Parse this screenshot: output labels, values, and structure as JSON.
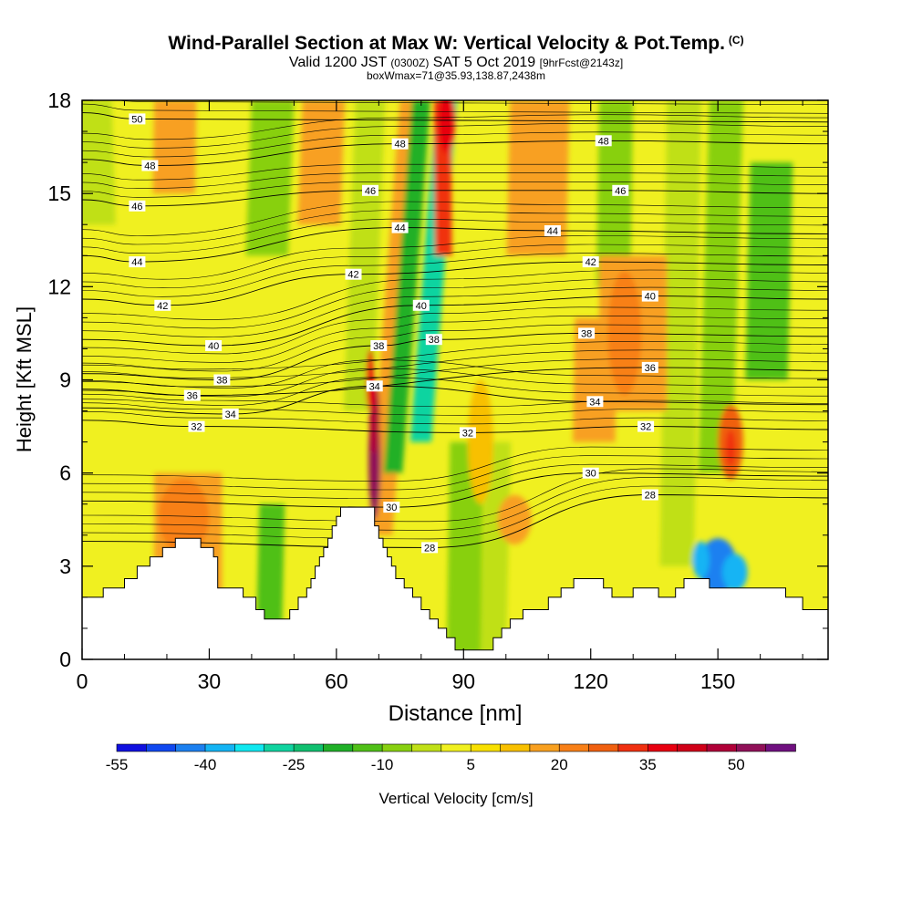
{
  "title": {
    "main": "Wind-Parallel Section at Max W: Vertical Velocity & Pot.Temp.",
    "copyright": "(C)",
    "valid_prefix": "Valid 1200 JST",
    "valid_utc": "(0300Z)",
    "valid_date": "SAT 5 Oct 2019",
    "forecast": "[9hrFcst@2143z]",
    "box_info": "boxWmax=71@35.93,138.87,2438m"
  },
  "chart_data": {
    "type": "heatmap",
    "xlabel": "Distance [nm]",
    "ylabel": "Height [Kft MSL]",
    "xlim": [
      0,
      176
    ],
    "ylim": [
      0,
      18
    ],
    "x_ticks": [
      "0",
      "30",
      "60",
      "90",
      "120",
      "150"
    ],
    "x_tick_values": [
      0,
      30,
      60,
      90,
      120,
      150
    ],
    "y_ticks": [
      "0",
      "3",
      "6",
      "9",
      "12",
      "15",
      "18"
    ],
    "y_tick_values": [
      0,
      3,
      6,
      9,
      12,
      15,
      18
    ],
    "colorbar": {
      "label": "Vertical Velocity [cm/s]",
      "tick_labels": [
        "-55",
        "-40",
        "-25",
        "-10",
        "5",
        "20",
        "35",
        "50"
      ],
      "tick_values": [
        -55,
        -40,
        -25,
        -10,
        5,
        20,
        35,
        50
      ],
      "levels": [
        -55,
        -50,
        -45,
        -40,
        -35,
        -30,
        -25,
        -20,
        -15,
        -10,
        -5,
        0,
        5,
        10,
        15,
        20,
        25,
        30,
        35,
        40,
        45,
        50,
        55,
        60
      ],
      "colors": [
        "#1010e0",
        "#1048f0",
        "#1c80f0",
        "#14b4f4",
        "#10e8f0",
        "#10d4a0",
        "#10c070",
        "#20b028",
        "#50c018",
        "#88d010",
        "#c0e018",
        "#f0f020",
        "#f8e000",
        "#f8c000",
        "#f8a020",
        "#f88018",
        "#f06010",
        "#f03010",
        "#e80010",
        "#d00018",
        "#b00038",
        "#901058",
        "#701080"
      ]
    },
    "terrain_kft": [
      [
        0,
        2.0
      ],
      [
        5,
        2.0
      ],
      [
        5,
        2.3
      ],
      [
        10,
        2.3
      ],
      [
        10,
        2.6
      ],
      [
        13,
        2.6
      ],
      [
        13,
        3.0
      ],
      [
        16,
        3.0
      ],
      [
        16,
        3.3
      ],
      [
        19,
        3.3
      ],
      [
        19,
        3.6
      ],
      [
        22,
        3.6
      ],
      [
        22,
        3.9
      ],
      [
        28,
        3.9
      ],
      [
        28,
        3.6
      ],
      [
        31,
        3.6
      ],
      [
        31,
        3.3
      ],
      [
        32,
        3.3
      ],
      [
        32,
        2.3
      ],
      [
        38,
        2.3
      ],
      [
        38,
        2.0
      ],
      [
        41,
        2.0
      ],
      [
        41,
        1.6
      ],
      [
        43,
        1.6
      ],
      [
        43,
        1.3
      ],
      [
        49,
        1.3
      ],
      [
        49,
        1.6
      ],
      [
        51,
        1.6
      ],
      [
        51,
        2.0
      ],
      [
        53,
        2.0
      ],
      [
        53,
        2.3
      ],
      [
        54,
        2.3
      ],
      [
        54,
        2.6
      ],
      [
        55,
        2.6
      ],
      [
        55,
        3.0
      ],
      [
        56,
        3.0
      ],
      [
        56,
        3.3
      ],
      [
        57,
        3.3
      ],
      [
        57,
        3.6
      ],
      [
        58,
        3.6
      ],
      [
        58,
        3.9
      ],
      [
        59,
        3.9
      ],
      [
        59,
        4.3
      ],
      [
        60,
        4.3
      ],
      [
        60,
        4.6
      ],
      [
        61,
        4.6
      ],
      [
        61,
        4.9
      ],
      [
        69,
        4.9
      ],
      [
        69,
        4.3
      ],
      [
        70,
        4.3
      ],
      [
        70,
        3.9
      ],
      [
        71,
        3.9
      ],
      [
        71,
        3.6
      ],
      [
        72,
        3.6
      ],
      [
        72,
        3.3
      ],
      [
        73,
        3.3
      ],
      [
        73,
        3.0
      ],
      [
        74,
        3.0
      ],
      [
        74,
        2.6
      ],
      [
        76,
        2.6
      ],
      [
        76,
        2.3
      ],
      [
        78,
        2.3
      ],
      [
        78,
        2.0
      ],
      [
        80,
        2.0
      ],
      [
        80,
        1.6
      ],
      [
        82,
        1.6
      ],
      [
        82,
        1.3
      ],
      [
        84,
        1.3
      ],
      [
        84,
        1.0
      ],
      [
        86,
        1.0
      ],
      [
        86,
        0.7
      ],
      [
        88,
        0.7
      ],
      [
        88,
        0.3
      ],
      [
        97,
        0.3
      ],
      [
        97,
        0.7
      ],
      [
        99,
        0.7
      ],
      [
        99,
        1.0
      ],
      [
        101,
        1.0
      ],
      [
        101,
        1.3
      ],
      [
        104,
        1.3
      ],
      [
        104,
        1.6
      ],
      [
        110,
        1.6
      ],
      [
        110,
        2.0
      ],
      [
        113,
        2.0
      ],
      [
        113,
        2.3
      ],
      [
        116,
        2.3
      ],
      [
        116,
        2.6
      ],
      [
        123,
        2.6
      ],
      [
        123,
        2.3
      ],
      [
        125,
        2.3
      ],
      [
        125,
        2.0
      ],
      [
        130,
        2.0
      ],
      [
        130,
        2.3
      ],
      [
        136,
        2.3
      ],
      [
        136,
        2.0
      ],
      [
        140,
        2.0
      ],
      [
        140,
        2.3
      ],
      [
        142,
        2.3
      ],
      [
        142,
        2.6
      ],
      [
        148,
        2.6
      ],
      [
        148,
        2.3
      ],
      [
        166,
        2.3
      ],
      [
        166,
        2.0
      ],
      [
        170,
        2.0
      ],
      [
        170,
        1.6
      ],
      [
        176,
        1.6
      ]
    ],
    "contour_labels": [
      {
        "text": "50",
        "x": 13,
        "y": 17.4
      },
      {
        "text": "48",
        "x": 16,
        "y": 15.9
      },
      {
        "text": "48",
        "x": 75,
        "y": 16.6
      },
      {
        "text": "48",
        "x": 123,
        "y": 16.7
      },
      {
        "text": "46",
        "x": 13,
        "y": 14.6
      },
      {
        "text": "46",
        "x": 68,
        "y": 15.1
      },
      {
        "text": "46",
        "x": 127,
        "y": 15.1
      },
      {
        "text": "44",
        "x": 13,
        "y": 12.8
      },
      {
        "text": "44",
        "x": 75,
        "y": 13.9
      },
      {
        "text": "44",
        "x": 111,
        "y": 13.8
      },
      {
        "text": "42",
        "x": 19,
        "y": 11.4
      },
      {
        "text": "42",
        "x": 64,
        "y": 12.4
      },
      {
        "text": "42",
        "x": 120,
        "y": 12.8
      },
      {
        "text": "40",
        "x": 31,
        "y": 10.1
      },
      {
        "text": "40",
        "x": 80,
        "y": 11.4
      },
      {
        "text": "40",
        "x": 134,
        "y": 11.7
      },
      {
        "text": "38",
        "x": 33,
        "y": 9.0
      },
      {
        "text": "38",
        "x": 70,
        "y": 10.1
      },
      {
        "text": "38",
        "x": 83,
        "y": 10.3
      },
      {
        "text": "38",
        "x": 119,
        "y": 10.5
      },
      {
        "text": "36",
        "x": 26,
        "y": 8.5
      },
      {
        "text": "36",
        "x": 134,
        "y": 9.4
      },
      {
        "text": "34",
        "x": 35,
        "y": 7.9
      },
      {
        "text": "34",
        "x": 69,
        "y": 8.8
      },
      {
        "text": "34",
        "x": 121,
        "y": 8.3
      },
      {
        "text": "32",
        "x": 27,
        "y": 7.5
      },
      {
        "text": "32",
        "x": 91,
        "y": 7.3
      },
      {
        "text": "32",
        "x": 133,
        "y": 7.5
      },
      {
        "text": "30",
        "x": 73,
        "y": 4.9
      },
      {
        "text": "30",
        "x": 120,
        "y": 6.0
      },
      {
        "text": "28",
        "x": 82,
        "y": 3.6
      },
      {
        "text": "28",
        "x": 134,
        "y": 5.3
      }
    ],
    "key_features": [
      {
        "name": "updraft core",
        "x": 69,
        "y": 6.3,
        "value": 50
      },
      {
        "name": "downdraft band",
        "x": 80,
        "y": 12.0,
        "value": -30
      },
      {
        "name": "downdraft pocket",
        "x": 150,
        "y": 3.0,
        "value": -45
      },
      {
        "name": "upper updraft",
        "x": 86,
        "y": 17.5,
        "value": 30
      }
    ]
  }
}
